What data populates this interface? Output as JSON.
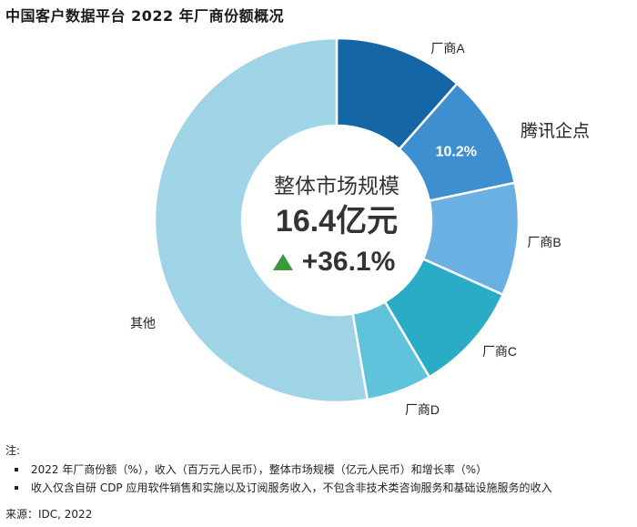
{
  "title": "中国客户数据平台 2022 年厂商份额概况",
  "chart_data": {
    "type": "pie",
    "donut": true,
    "slices": [
      {
        "label": "厂商A",
        "value": 11.5,
        "color": "#1466a6",
        "data_label": ""
      },
      {
        "label": "腾讯企点",
        "value": 10.2,
        "color": "#3d8fd0",
        "data_label": "10.2%"
      },
      {
        "label": "厂商B",
        "value": 10.0,
        "color": "#6ab0e2",
        "data_label": ""
      },
      {
        "label": "厂商C",
        "value": 9.8,
        "color": "#2aabc6",
        "data_label": ""
      },
      {
        "label": "厂商D",
        "value": 5.8,
        "color": "#5fc3dc",
        "data_label": ""
      },
      {
        "label": "其他",
        "value": 52.7,
        "color": "#9fd4e6",
        "data_label": ""
      }
    ],
    "center": {
      "label": "整体市场规模",
      "value": "16.4亿元",
      "growth": "+36.1%",
      "growth_color": "#3a9a3a"
    }
  },
  "notes": {
    "heading": "注:",
    "items": [
      "2022 年厂商份额（%），收入（百万元人民币），整体市场规模（亿元人民币）和增长率（%）",
      "收入仅含自研 CDP 应用软件销售和实施以及订阅服务收入，不包含非技术类咨询服务和基础设施服务的收入"
    ]
  },
  "source": "来源：IDC, 2022"
}
